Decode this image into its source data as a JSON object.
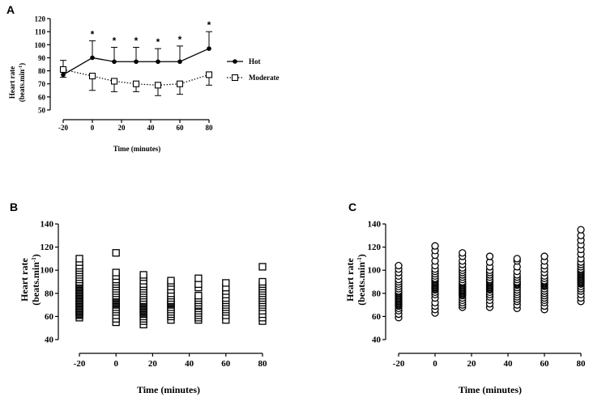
{
  "chart_data": [
    {
      "panel": "A",
      "type": "line",
      "xlabel": "Time (minutes)",
      "ylabel": [
        "Heart rate",
        "(beats.min",
        "-1",
        ")"
      ],
      "x": [
        -20,
        0,
        15,
        30,
        45,
        60,
        80
      ],
      "xticks": [
        -20,
        0,
        20,
        40,
        60,
        80
      ],
      "yticks": [
        50,
        60,
        70,
        80,
        90,
        100,
        110,
        120
      ],
      "xlim": [
        -20,
        80
      ],
      "ylim": [
        50,
        120
      ],
      "series": [
        {
          "name": "Hot",
          "values": [
            77,
            90,
            87,
            87,
            87,
            87,
            97
          ],
          "errors": [
            11,
            13,
            11,
            11,
            10,
            12,
            13
          ],
          "marker": "filled-circle",
          "line": "solid",
          "color": "#000000"
        },
        {
          "name": "Moderate",
          "values": [
            81,
            76,
            72,
            70,
            69,
            70,
            77
          ],
          "errors": [
            6,
            11,
            8,
            6,
            8,
            8,
            8
          ],
          "marker": "open-square",
          "line": "dotted",
          "color": "#000000"
        }
      ],
      "annotations": {
        "symbol": "*",
        "x": [
          0,
          15,
          30,
          45,
          60,
          80
        ]
      }
    },
    {
      "panel": "B",
      "type": "scatter",
      "marker": "open-square",
      "xlabel": "Time (minutes)",
      "ylabel": [
        "Heart rate",
        "(beats.min",
        "-1",
        ")"
      ],
      "xticks": [
        -20,
        0,
        20,
        40,
        60,
        80
      ],
      "yticks": [
        40,
        60,
        80,
        100,
        120,
        140
      ],
      "xlim": [
        -20,
        80
      ],
      "ylim": [
        40,
        140
      ],
      "points": [
        {
          "x": -20,
          "y": [
            59,
            61,
            62,
            63,
            64,
            65,
            66,
            67,
            68,
            69,
            70,
            71,
            72,
            73,
            74,
            75,
            76,
            77,
            78,
            79,
            80,
            81,
            82,
            83,
            84,
            85,
            86,
            87,
            88,
            89,
            90,
            92,
            94,
            96,
            98,
            100,
            102,
            104,
            107,
            110
          ]
        },
        {
          "x": 0,
          "y": [
            55,
            58,
            61,
            64,
            66,
            68,
            70,
            71,
            72,
            73,
            74,
            75,
            76,
            77,
            78,
            80,
            82,
            84,
            86,
            88,
            90,
            92,
            95,
            98,
            115
          ]
        },
        {
          "x": 15,
          "y": [
            53,
            56,
            58,
            60,
            62,
            63,
            64,
            65,
            66,
            67,
            68,
            69,
            70,
            71,
            72,
            73,
            74,
            76,
            78,
            80,
            82,
            84,
            86,
            88,
            91,
            94,
            96
          ]
        },
        {
          "x": 30,
          "y": [
            57,
            60,
            62,
            64,
            66,
            68,
            70,
            71,
            72,
            73,
            74,
            76,
            78,
            80,
            83,
            86,
            89,
            91
          ]
        },
        {
          "x": 45,
          "y": [
            57,
            59,
            61,
            63,
            65,
            67,
            69,
            70,
            72,
            74,
            76,
            78,
            85,
            88,
            93
          ]
        },
        {
          "x": 60,
          "y": [
            57,
            61,
            64,
            66,
            68,
            70,
            72,
            74,
            76,
            79,
            82,
            85,
            89
          ]
        },
        {
          "x": 80,
          "y": [
            56,
            59,
            62,
            65,
            68,
            70,
            72,
            74,
            76,
            78,
            80,
            82,
            84,
            86,
            88,
            90,
            103
          ]
        }
      ]
    },
    {
      "panel": "C",
      "type": "scatter",
      "marker": "open-circle",
      "xlabel": "Time (minutes)",
      "ylabel": [
        "Heart rate",
        "(beats.min",
        "-1",
        ")"
      ],
      "xticks": [
        -20,
        0,
        20,
        40,
        60,
        80
      ],
      "yticks": [
        40,
        60,
        80,
        100,
        120,
        140
      ],
      "xlim": [
        -20,
        80
      ],
      "ylim": [
        40,
        140
      ],
      "points": [
        {
          "x": -20,
          "y": [
            59,
            62,
            65,
            67,
            69,
            70,
            71,
            72,
            73,
            74,
            75,
            76,
            77,
            78,
            79,
            80,
            81,
            82,
            84,
            86,
            88,
            90,
            92,
            95,
            98,
            101,
            104
          ]
        },
        {
          "x": 0,
          "y": [
            63,
            66,
            69,
            72,
            76,
            79,
            81,
            83,
            84,
            85,
            86,
            87,
            88,
            89,
            90,
            91,
            92,
            93,
            95,
            97,
            99,
            101,
            104,
            108,
            113,
            117,
            121
          ]
        },
        {
          "x": 15,
          "y": [
            68,
            70,
            72,
            74,
            76,
            78,
            79,
            80,
            81,
            82,
            83,
            84,
            85,
            86,
            87,
            88,
            89,
            90,
            92,
            94,
            96,
            98,
            100,
            102,
            105,
            108,
            112,
            115
          ]
        },
        {
          "x": 30,
          "y": [
            68,
            71,
            74,
            77,
            79,
            81,
            83,
            84,
            85,
            86,
            87,
            88,
            89,
            90,
            91,
            92,
            94,
            96,
            98,
            100,
            103,
            107,
            112
          ]
        },
        {
          "x": 45,
          "y": [
            67,
            70,
            73,
            75,
            77,
            79,
            81,
            83,
            85,
            87,
            88,
            89,
            90,
            92,
            94,
            96,
            99,
            103,
            108,
            110
          ]
        },
        {
          "x": 60,
          "y": [
            66,
            69,
            72,
            74,
            76,
            78,
            80,
            82,
            84,
            86,
            87,
            88,
            89,
            90,
            91,
            93,
            95,
            98,
            101,
            104,
            108,
            112
          ]
        },
        {
          "x": 80,
          "y": [
            73,
            76,
            79,
            82,
            84,
            86,
            88,
            89,
            90,
            91,
            92,
            93,
            94,
            95,
            96,
            97,
            98,
            99,
            100,
            101,
            103,
            105,
            107,
            110,
            114,
            118,
            122,
            126,
            130,
            135
          ]
        }
      ]
    }
  ]
}
